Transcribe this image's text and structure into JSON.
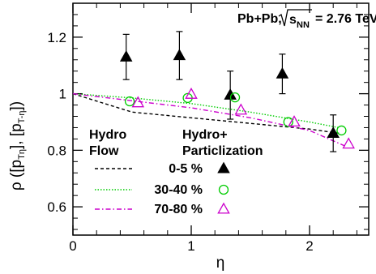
{
  "chart_data": {
    "type": "scatter",
    "system_label": {
      "prefix": "Pb+Pb,",
      "sqrt_s": "s",
      "sqrt_s_sub": "NN",
      "value": "= 2.76 TeV"
    },
    "xlabel": "η",
    "ylabel": {
      "main": "ρ ([p",
      "sub1": "T",
      "mid": "]",
      "sub2": "η",
      "mid2": ", [p",
      "sub3": "T",
      "end": "]",
      "sub4": "-η",
      "close": ")"
    },
    "xlim": [
      0,
      2.5
    ],
    "ylim": [
      0.5,
      1.32
    ],
    "x_ticks": [
      0,
      1,
      2
    ],
    "y_ticks": [
      0.6,
      0.8,
      1,
      1.2
    ],
    "legend": {
      "hydro_header": [
        "Hydro",
        "Flow"
      ],
      "particle_header": [
        "Hydro+",
        "Particlization"
      ],
      "entries": [
        "0-5 %",
        "30-40 %",
        "70-80 %"
      ]
    },
    "series": [
      {
        "name": "0-5 %",
        "kind": "hydro-flow",
        "color": "#000000",
        "dash": "dashed",
        "x": [
          0,
          0.5,
          1.0,
          1.5,
          2.0,
          2.25
        ],
        "y": [
          1.0,
          0.935,
          0.915,
          0.895,
          0.875,
          0.86
        ]
      },
      {
        "name": "30-40 %",
        "kind": "hydro-flow",
        "color": "#00cc00",
        "dash": "dotted",
        "x": [
          0,
          0.5,
          1.0,
          1.5,
          2.0,
          2.25
        ],
        "y": [
          1.0,
          0.985,
          0.965,
          0.935,
          0.9,
          0.88
        ]
      },
      {
        "name": "70-80 %",
        "kind": "hydro-flow",
        "color": "#cc00cc",
        "dash": "dashdot",
        "x": [
          0,
          0.5,
          1.0,
          1.5,
          2.0,
          2.3
        ],
        "y": [
          1.0,
          0.975,
          0.95,
          0.915,
          0.87,
          0.815
        ]
      },
      {
        "name": "0-5 %",
        "kind": "hydro-particlization",
        "color": "#000000",
        "marker": "filled-triangle",
        "x": [
          0.45,
          0.9,
          1.33,
          1.77,
          2.2
        ],
        "y": [
          1.13,
          1.135,
          0.995,
          1.07,
          0.86
        ],
        "err": [
          0.08,
          0.085,
          0.085,
          0.07,
          0.065
        ]
      },
      {
        "name": "30-40 %",
        "kind": "hydro-particlization",
        "color": "#00cc00",
        "marker": "open-circle",
        "x": [
          0.48,
          0.97,
          1.37,
          1.82,
          2.27
        ],
        "y": [
          0.973,
          0.985,
          0.987,
          0.9,
          0.87
        ]
      },
      {
        "name": "70-80 %",
        "kind": "hydro-particlization",
        "color": "#cc00cc",
        "marker": "open-triangle",
        "x": [
          0.55,
          1.0,
          1.42,
          1.87,
          2.33
        ],
        "y": [
          0.968,
          0.998,
          0.942,
          0.9,
          0.822
        ]
      }
    ]
  }
}
